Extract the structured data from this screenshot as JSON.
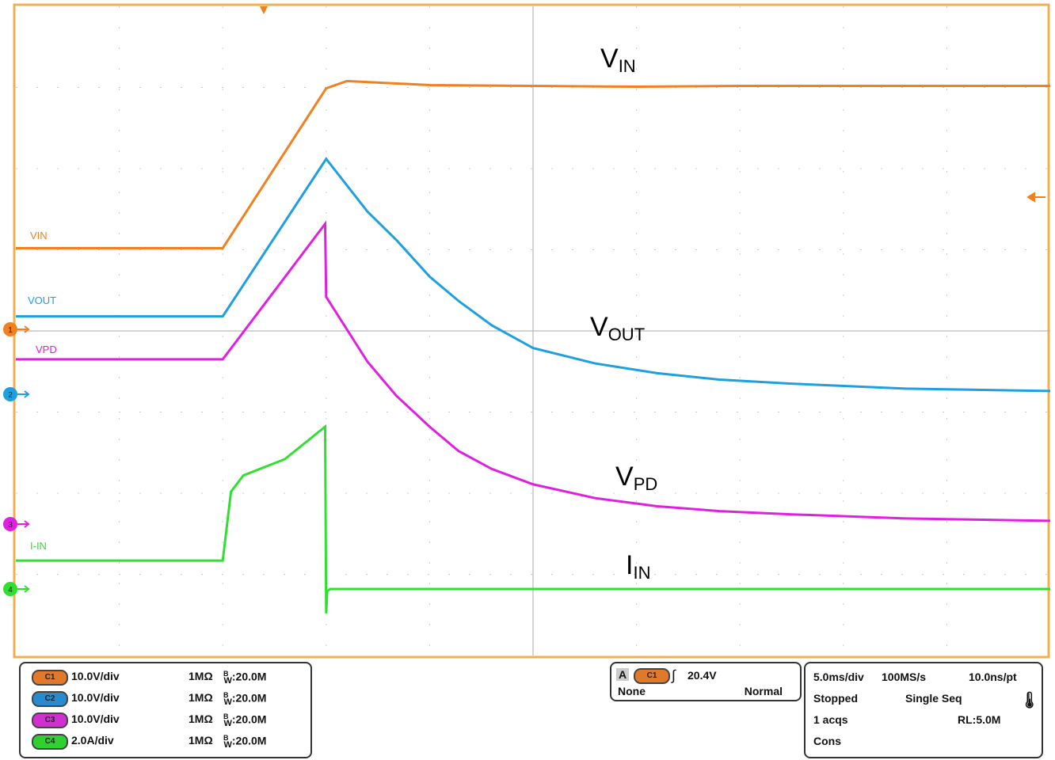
{
  "chart_data": {
    "type": "line",
    "xlabel": "",
    "ylabel": "",
    "x_unit": "ms",
    "xlim": [
      -25,
      25
    ],
    "grid": true,
    "divisions": {
      "horizontal": 10,
      "vertical": 8
    },
    "series": [
      {
        "name": "VIN",
        "channel": "1",
        "color": "#f08020",
        "scale_per_div": 10,
        "unit": "V",
        "annotation": {
          "main": "V",
          "sub": "IN"
        },
        "points": [
          [
            -25,
            10
          ],
          [
            -15,
            10
          ],
          [
            -10,
            29.7
          ],
          [
            -9,
            30.6
          ],
          [
            -5,
            30.1
          ],
          [
            0,
            30
          ],
          [
            5,
            29.9
          ],
          [
            10,
            30
          ],
          [
            25,
            30
          ]
        ]
      },
      {
        "name": "VOUT",
        "channel": "2",
        "color": "#1ea0e0",
        "scale_per_div": 10,
        "unit": "V",
        "annotation": {
          "main": "V",
          "sub": "OUT"
        },
        "points": [
          [
            -25,
            9.6
          ],
          [
            -15,
            9.6
          ],
          [
            -10,
            29
          ],
          [
            -8,
            22.5
          ],
          [
            -6.6,
            19
          ],
          [
            -5,
            14.5
          ],
          [
            -3.6,
            11.5
          ],
          [
            -2,
            8.5
          ],
          [
            0,
            5.7
          ],
          [
            3,
            3.8
          ],
          [
            6,
            2.6
          ],
          [
            9,
            1.8
          ],
          [
            12.5,
            1.3
          ],
          [
            18,
            0.7
          ],
          [
            25,
            0.4
          ]
        ]
      },
      {
        "name": "VPD",
        "channel": "3",
        "color": "#e020e0",
        "scale_per_div": 10,
        "unit": "V",
        "annotation": {
          "main": "V",
          "sub": "PD"
        },
        "points": [
          [
            -25,
            20.3
          ],
          [
            -15,
            20.3
          ],
          [
            -10.05,
            37
          ],
          [
            -10,
            28
          ],
          [
            -8,
            20
          ],
          [
            -6.6,
            15.8
          ],
          [
            -5,
            12
          ],
          [
            -3.6,
            9
          ],
          [
            -2,
            6.8
          ],
          [
            0,
            4.9
          ],
          [
            3,
            3.2
          ],
          [
            6,
            2.2
          ],
          [
            9,
            1.6
          ],
          [
            12.5,
            1.2
          ],
          [
            18,
            0.7
          ],
          [
            25,
            0.4
          ]
        ]
      },
      {
        "name": "I-IN",
        "channel": "4",
        "color": "#30e030",
        "scale_per_div": 2,
        "unit": "A",
        "annotation": {
          "main": "I",
          "sub": "IN"
        },
        "points": [
          [
            -25,
            0.7
          ],
          [
            -15,
            0.7
          ],
          [
            -14.6,
            2.4
          ],
          [
            -14,
            2.8
          ],
          [
            -12,
            3.2
          ],
          [
            -10.05,
            4.0
          ],
          [
            -10,
            -0.6
          ],
          [
            -9.95,
            -0.05
          ],
          [
            -9.8,
            0
          ],
          [
            25,
            0
          ]
        ]
      }
    ],
    "trigger_marker_color": "#f08020"
  },
  "channels": [
    {
      "pill": "C1",
      "color": "#e07a2a",
      "scale": "10.0V/div",
      "impedance": "1MΩ",
      "bw_b": "B",
      "bw_w": "W",
      "bw": ":20.0M"
    },
    {
      "pill": "C2",
      "color": "#2a8ad0",
      "scale": "10.0V/div",
      "impedance": "1MΩ",
      "bw_b": "B",
      "bw_w": "W",
      "bw": ":20.0M"
    },
    {
      "pill": "C3",
      "color": "#d030d0",
      "scale": "10.0V/div",
      "impedance": "1MΩ",
      "bw_b": "B",
      "bw_w": "W",
      "bw": ":20.0M"
    },
    {
      "pill": "C4",
      "color": "#30d030",
      "scale": "2.0A/div",
      "impedance": "1MΩ",
      "bw_b": "B",
      "bw_w": "W",
      "bw": ":20.0M"
    }
  ],
  "trigger": {
    "label": "A",
    "source": "C1",
    "level": "20.4V",
    "mode_left": "None",
    "mode_right": "Normal"
  },
  "acquisition": {
    "timebase": "5.0ms/div",
    "sample_rate": "100MS/s",
    "resolution": "10.0ns/pt",
    "state": "Stopped",
    "mode": "Single Seq",
    "acqs": "1 acqs",
    "record_length": "RL:5.0M",
    "cons": "Cons"
  }
}
